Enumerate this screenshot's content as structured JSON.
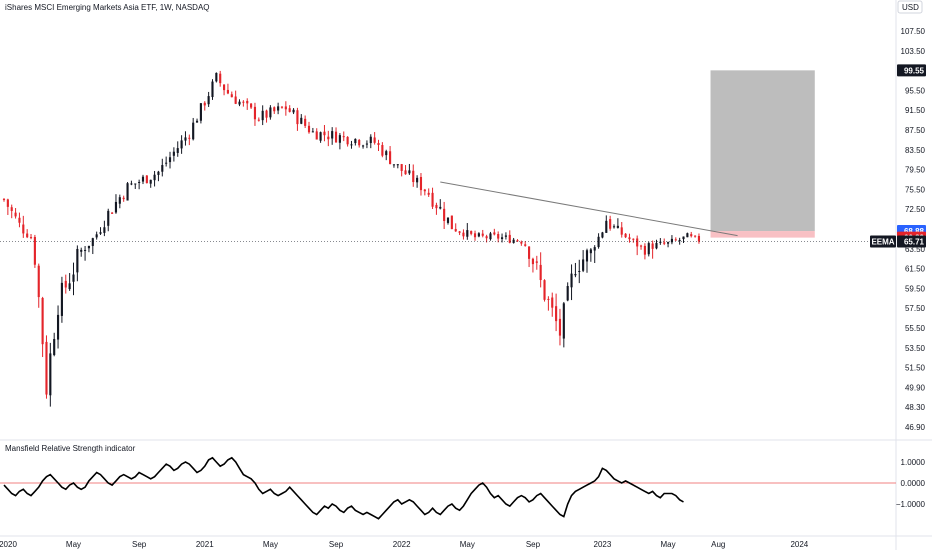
{
  "header": {
    "title": "iShares MSCI Emerging Markets Asia ETF, 1W, NASDAQ",
    "currency": "USD"
  },
  "indicator": {
    "title": "Mansfield Relative Strength indicator"
  },
  "colors": {
    "up": "#131722",
    "down": "#e4242a",
    "bg": "#ffffff",
    "grid_line": "#e0e3eb",
    "target_zone": "#bdbdbd",
    "stop_zone": "#f8c0c4",
    "trendline": "#7a7a7a",
    "zero_line": "#f08080",
    "tag_blue": "#2962ff",
    "tag_red": "#e4242a",
    "tag_black": "#131722"
  },
  "price_tags": [
    {
      "label": "99.55",
      "value": 99.55,
      "color": "tag_black"
    },
    {
      "label": "68.88",
      "value": 68.88,
      "color": "tag_blue"
    },
    {
      "label": "66.89",
      "value": 66.89,
      "color": "tag_red"
    },
    {
      "label": "65.71",
      "value": 65.71,
      "color": "tag_black",
      "ticker": "EEMA"
    }
  ],
  "chart_data": [
    {
      "type": "candlestick",
      "title": "iShares MSCI Emerging Markets Asia ETF, 1W, NASDAQ",
      "y_ticks": [
        "107.50",
        "103.50",
        "99.50",
        "95.50",
        "91.50",
        "87.50",
        "83.50",
        "79.50",
        "75.50",
        "72.50",
        "69.50",
        "63.50",
        "61.50",
        "59.50",
        "57.50",
        "55.50",
        "53.50",
        "51.50",
        "49.90",
        "48.30",
        "46.90"
      ],
      "y_tick_values": [
        107.5,
        103.5,
        99.5,
        95.5,
        91.5,
        87.5,
        83.5,
        79.5,
        75.5,
        72.5,
        69.5,
        63.5,
        61.5,
        59.5,
        57.5,
        55.5,
        53.5,
        51.5,
        49.9,
        48.3,
        46.9
      ],
      "x_ticks": [
        "2020",
        "May",
        "Sep",
        "2021",
        "May",
        "Sep",
        "2022",
        "May",
        "Sep",
        "2023",
        "May",
        "Aug",
        "2024"
      ],
      "x_tick_weeks": [
        0,
        18,
        35,
        52,
        69,
        86,
        103,
        120,
        137,
        155,
        172,
        185,
        206
      ],
      "current_price": 65.71,
      "last_week": 180,
      "weeks_visible": 230,
      "segments": [
        {
          "w": 0,
          "v": 74
        },
        {
          "w": 7,
          "v": 67
        },
        {
          "w": 11,
          "v": 50
        },
        {
          "w": 14,
          "v": 58
        },
        {
          "w": 22,
          "v": 65
        },
        {
          "w": 26,
          "v": 71
        },
        {
          "w": 32,
          "v": 76
        },
        {
          "w": 40,
          "v": 79
        },
        {
          "w": 48,
          "v": 87
        },
        {
          "w": 55,
          "v": 98
        },
        {
          "w": 58,
          "v": 95
        },
        {
          "w": 66,
          "v": 90
        },
        {
          "w": 73,
          "v": 92
        },
        {
          "w": 80,
          "v": 87
        },
        {
          "w": 88,
          "v": 86
        },
        {
          "w": 96,
          "v": 85
        },
        {
          "w": 102,
          "v": 80
        },
        {
          "w": 110,
          "v": 75
        },
        {
          "w": 116,
          "v": 70
        },
        {
          "w": 122,
          "v": 67
        },
        {
          "w": 128,
          "v": 67
        },
        {
          "w": 134,
          "v": 66
        },
        {
          "w": 139,
          "v": 60
        },
        {
          "w": 144,
          "v": 55
        },
        {
          "w": 148,
          "v": 62
        },
        {
          "w": 152,
          "v": 63
        },
        {
          "w": 156,
          "v": 71
        },
        {
          "w": 160,
          "v": 68
        },
        {
          "w": 165,
          "v": 64
        },
        {
          "w": 172,
          "v": 65
        },
        {
          "w": 177,
          "v": 67
        },
        {
          "w": 180,
          "v": 65.71
        }
      ],
      "trendline": {
        "from": {
          "w": 113,
          "v": 77
        },
        "to": {
          "w": 190,
          "v": 67.5
        }
      },
      "position": {
        "from_week": 183,
        "to_week": 210,
        "target": 99.55,
        "entry": 68.88,
        "stop": 66.89
      }
    },
    {
      "type": "line",
      "title": "Mansfield Relative Strength indicator",
      "y_ticks": [
        "1.0000",
        "0.0000",
        "−1.0000"
      ],
      "y_tick_values": [
        1,
        0,
        -1
      ],
      "zero_line": 0,
      "series": [
        {
          "values": [
            -0.1,
            -0.3,
            -0.5,
            -0.6,
            -0.4,
            -0.3,
            -0.5,
            -0.6,
            -0.4,
            -0.2,
            0.1,
            0.3,
            0.4,
            0.2,
            0.0,
            -0.2,
            -0.3,
            -0.1,
            0.0,
            -0.2,
            -0.3,
            -0.2,
            0.1,
            0.3,
            0.5,
            0.4,
            0.2,
            0.0,
            -0.1,
            0.1,
            0.3,
            0.4,
            0.3,
            0.2,
            0.3,
            0.5,
            0.4,
            0.3,
            0.2,
            0.3,
            0.5,
            0.7,
            0.9,
            0.8,
            0.6,
            0.7,
            0.9,
            1.0,
            0.9,
            0.7,
            0.5,
            0.6,
            0.8,
            1.1,
            1.2,
            1.0,
            0.8,
            0.9,
            1.1,
            1.2,
            1.0,
            0.7,
            0.4,
            0.3,
            0.2,
            0.0,
            -0.3,
            -0.5,
            -0.4,
            -0.3,
            -0.5,
            -0.6,
            -0.5,
            -0.4,
            -0.2,
            -0.4,
            -0.6,
            -0.8,
            -1.0,
            -1.2,
            -1.4,
            -1.5,
            -1.3,
            -1.1,
            -1.2,
            -1.0,
            -1.1,
            -1.3,
            -1.4,
            -1.2,
            -1.1,
            -1.3,
            -1.4,
            -1.5,
            -1.4,
            -1.5,
            -1.6,
            -1.7,
            -1.5,
            -1.3,
            -1.1,
            -0.9,
            -0.8,
            -1.0,
            -0.9,
            -0.8,
            -0.9,
            -1.1,
            -1.3,
            -1.5,
            -1.4,
            -1.2,
            -1.4,
            -1.5,
            -1.3,
            -1.1,
            -1.0,
            -1.2,
            -1.3,
            -1.1,
            -0.8,
            -0.5,
            -0.3,
            -0.1,
            0.0,
            -0.2,
            -0.5,
            -0.7,
            -0.6,
            -0.8,
            -1.0,
            -1.1,
            -0.9,
            -0.7,
            -0.6,
            -0.7,
            -0.9,
            -0.8,
            -0.6,
            -0.5,
            -0.7,
            -0.9,
            -1.1,
            -1.3,
            -1.5,
            -1.6,
            -1.0,
            -0.6,
            -0.4,
            -0.3,
            -0.2,
            -0.1,
            0.0,
            0.1,
            0.3,
            0.7,
            0.6,
            0.4,
            0.2,
            0.1,
            0.0,
            0.1,
            0.0,
            -0.1,
            -0.2,
            -0.3,
            -0.4,
            -0.5,
            -0.4,
            -0.6,
            -0.7,
            -0.5,
            -0.5,
            -0.5,
            -0.6,
            -0.8,
            -0.9
          ]
        }
      ],
      "x_weeks_start": 0
    }
  ]
}
